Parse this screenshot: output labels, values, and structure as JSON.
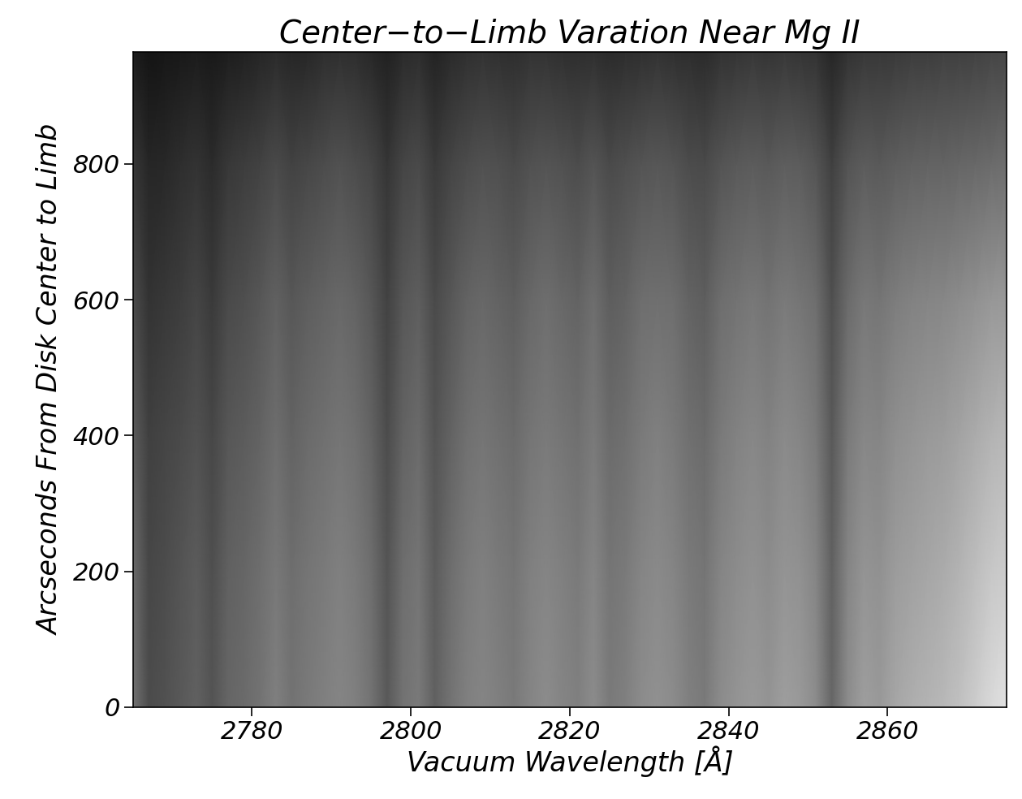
{
  "chart_data": {
    "type": "heatmap",
    "title": "Center−to−Limb Varation Near Mg II",
    "x_label": "Vacuum Wavelength [Å]",
    "y_label": "Arcseconds From Disk Center to Limb",
    "color": "gray",
    "color_range": [
      0,
      1
    ],
    "xlim": [
      2765,
      2875
    ],
    "ylim": [
      0,
      965
    ],
    "xticks": [
      2780,
      2800,
      2820,
      2840,
      2860
    ],
    "yticks": [
      0,
      200,
      400,
      600,
      800
    ],
    "grid": false,
    "x": [
      2765,
      2767,
      2769,
      2771,
      2773,
      2775,
      2777,
      2779,
      2781,
      2783,
      2785,
      2787,
      2789,
      2791,
      2793,
      2795,
      2797,
      2799,
      2801,
      2803,
      2805,
      2807,
      2809,
      2811,
      2813,
      2815,
      2817,
      2819,
      2821,
      2823,
      2825,
      2827,
      2829,
      2831,
      2833,
      2835,
      2837,
      2839,
      2841,
      2843,
      2845,
      2847,
      2849,
      2851,
      2853,
      2855,
      2857,
      2859,
      2861,
      2863,
      2865,
      2867,
      2869,
      2871,
      2873,
      2875
    ],
    "y": [
      0,
      200,
      400,
      600,
      800,
      965
    ],
    "cells": [
      [
        0.45,
        0.3,
        0.32,
        0.35,
        0.38,
        0.33,
        0.4,
        0.42,
        0.45,
        0.5,
        0.45,
        0.48,
        0.5,
        0.52,
        0.5,
        0.45,
        0.35,
        0.45,
        0.48,
        0.38,
        0.45,
        0.5,
        0.52,
        0.5,
        0.48,
        0.52,
        0.55,
        0.52,
        0.5,
        0.55,
        0.48,
        0.5,
        0.55,
        0.57,
        0.55,
        0.5,
        0.48,
        0.55,
        0.58,
        0.6,
        0.58,
        0.62,
        0.6,
        0.55,
        0.4,
        0.55,
        0.62,
        0.6,
        0.65,
        0.68,
        0.7,
        0.72,
        0.75,
        0.8,
        0.85,
        0.88
      ],
      [
        0.42,
        0.28,
        0.3,
        0.33,
        0.36,
        0.31,
        0.38,
        0.4,
        0.43,
        0.47,
        0.43,
        0.46,
        0.48,
        0.5,
        0.48,
        0.43,
        0.33,
        0.43,
        0.46,
        0.36,
        0.43,
        0.48,
        0.5,
        0.48,
        0.46,
        0.5,
        0.52,
        0.5,
        0.48,
        0.52,
        0.46,
        0.48,
        0.52,
        0.54,
        0.52,
        0.48,
        0.46,
        0.52,
        0.55,
        0.57,
        0.55,
        0.58,
        0.57,
        0.52,
        0.38,
        0.52,
        0.58,
        0.57,
        0.61,
        0.63,
        0.65,
        0.67,
        0.7,
        0.74,
        0.78,
        0.8
      ],
      [
        0.36,
        0.25,
        0.27,
        0.29,
        0.32,
        0.28,
        0.34,
        0.36,
        0.39,
        0.43,
        0.39,
        0.42,
        0.44,
        0.46,
        0.44,
        0.39,
        0.3,
        0.39,
        0.42,
        0.33,
        0.39,
        0.44,
        0.46,
        0.44,
        0.42,
        0.46,
        0.48,
        0.46,
        0.44,
        0.48,
        0.42,
        0.44,
        0.48,
        0.5,
        0.48,
        0.44,
        0.42,
        0.48,
        0.51,
        0.53,
        0.51,
        0.54,
        0.52,
        0.48,
        0.35,
        0.48,
        0.53,
        0.52,
        0.56,
        0.58,
        0.6,
        0.61,
        0.64,
        0.67,
        0.7,
        0.72
      ],
      [
        0.3,
        0.2,
        0.22,
        0.24,
        0.27,
        0.23,
        0.29,
        0.31,
        0.34,
        0.38,
        0.34,
        0.37,
        0.39,
        0.41,
        0.39,
        0.34,
        0.26,
        0.34,
        0.37,
        0.29,
        0.34,
        0.39,
        0.41,
        0.39,
        0.37,
        0.41,
        0.43,
        0.41,
        0.39,
        0.43,
        0.37,
        0.39,
        0.43,
        0.44,
        0.43,
        0.39,
        0.37,
        0.43,
        0.45,
        0.47,
        0.45,
        0.48,
        0.46,
        0.43,
        0.31,
        0.42,
        0.47,
        0.46,
        0.49,
        0.51,
        0.52,
        0.53,
        0.55,
        0.57,
        0.59,
        0.6
      ],
      [
        0.22,
        0.15,
        0.16,
        0.18,
        0.2,
        0.17,
        0.22,
        0.24,
        0.26,
        0.29,
        0.26,
        0.28,
        0.3,
        0.32,
        0.3,
        0.27,
        0.21,
        0.27,
        0.29,
        0.23,
        0.27,
        0.3,
        0.32,
        0.31,
        0.29,
        0.32,
        0.33,
        0.32,
        0.3,
        0.33,
        0.29,
        0.31,
        0.33,
        0.34,
        0.33,
        0.3,
        0.29,
        0.33,
        0.35,
        0.36,
        0.35,
        0.37,
        0.36,
        0.33,
        0.25,
        0.33,
        0.36,
        0.35,
        0.37,
        0.38,
        0.39,
        0.39,
        0.4,
        0.41,
        0.42,
        0.43
      ],
      [
        0.12,
        0.08,
        0.09,
        0.1,
        0.11,
        0.1,
        0.12,
        0.13,
        0.15,
        0.17,
        0.15,
        0.16,
        0.18,
        0.19,
        0.18,
        0.16,
        0.13,
        0.17,
        0.18,
        0.14,
        0.17,
        0.19,
        0.2,
        0.19,
        0.18,
        0.2,
        0.2,
        0.19,
        0.18,
        0.19,
        0.17,
        0.18,
        0.19,
        0.2,
        0.19,
        0.18,
        0.17,
        0.2,
        0.21,
        0.22,
        0.21,
        0.22,
        0.21,
        0.2,
        0.15,
        0.2,
        0.22,
        0.22,
        0.23,
        0.24,
        0.24,
        0.25,
        0.25,
        0.26,
        0.27,
        0.28
      ]
    ]
  }
}
